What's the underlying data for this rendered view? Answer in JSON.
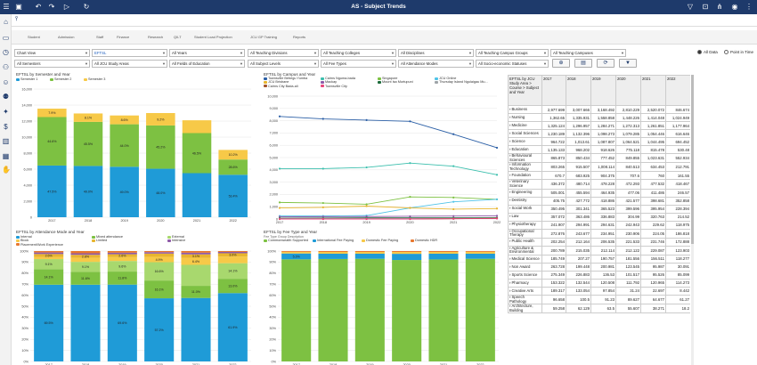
{
  "app": {
    "title": "AS - Subject Trends"
  },
  "topbar": {
    "icons": [
      "hamburger-icon",
      "save-icon",
      "undo-icon",
      "redo-icon",
      "play-icon",
      "refresh-icon",
      "filter-icon",
      "bookmark-icon",
      "share-icon",
      "user-icon",
      "more-icon"
    ]
  },
  "ribbon": {
    "tabs": [
      "Student",
      "Admission",
      "Staff",
      "Finance",
      "Research",
      "QILT",
      "Student Load Projection",
      "JCU GP Training",
      "Reports"
    ]
  },
  "filters": {
    "row1": [
      "Chart View",
      "EFTSL",
      "All Years",
      "All Teaching Divisions",
      "All Teaching Colleges",
      "All Disciplines",
      "All Teaching Campus Groups",
      "All Teaching Campuses"
    ],
    "row2": [
      "All Semesters",
      "All JCU Study Areas",
      "All Fields of Education",
      "All Subject Levels",
      "All Fee Types",
      "All Attendance Modes",
      "All Socio-economic Statuses"
    ]
  },
  "options": {
    "all_data": "All Data",
    "point_in_time": "Point in Time"
  },
  "colors": {
    "blue": "#1f9bd7",
    "green": "#7dc142",
    "yellow": "#f7c948",
    "orange": "#e8772e",
    "teal": "#3bbfad",
    "darkblue": "#2b5fa6",
    "cyan": "#4fc3e8",
    "lightgreen": "#a8d86e",
    "purple": "#8e5aa8",
    "brown": "#a0522d",
    "darkgreen": "#1b6b3a",
    "pink": "#e8467c",
    "gray": "#9ea4a8",
    "gold": "#e8b52e",
    "red": "#d9342b"
  },
  "chart_data": [
    {
      "type": "bar",
      "title": "EFTSL by Semester and Year",
      "categories": [
        "2017",
        "2018",
        "2019",
        "2020",
        "2021",
        "2022"
      ],
      "ylim": [
        0,
        16000
      ],
      "yticks": [
        "0",
        "2,000",
        "4,000",
        "6,000",
        "8,000",
        "10,000",
        "12,000",
        "14,000",
        "16,000"
      ],
      "series": [
        {
          "name": "Semester 1",
          "values": [
            6450,
            6400,
            6300,
            6050,
            5500,
            5300
          ],
          "labels": [
            "47.5%",
            "49.0%",
            "49.0%",
            "48.0%",
            "",
            "53.4%"
          ]
        },
        {
          "name": "Semester 2",
          "values": [
            6050,
            5500,
            5300,
            5400,
            5000,
            1900
          ],
          "labels": [
            "44.6%",
            "45.5%",
            "44.0%",
            "45.2%",
            "46.5%",
            "28.6%"
          ]
        },
        {
          "name": "Semester 3",
          "values": [
            1050,
            1050,
            1100,
            1550,
            1600,
            1200
          ],
          "labels": [
            "7.9%",
            "8.1%",
            "8.6%",
            "9.2%",
            "",
            "10.2%"
          ]
        }
      ]
    },
    {
      "type": "line",
      "title": "EFTSL by Campus and Year",
      "categories": [
        "2017",
        "2018",
        "2019",
        "2020",
        "2021",
        "2022"
      ],
      "ylim": [
        0,
        10000
      ],
      "yticks": [
        "0",
        "1,000",
        "2,000",
        "3,000",
        "4,000",
        "5,000",
        "6,000",
        "7,000",
        "8,000",
        "9,000",
        "10,000"
      ],
      "series": [
        {
          "name": "Townsville Bebegu Yumba",
          "values": [
            8350,
            8150,
            8050,
            7950,
            6900,
            5800
          ]
        },
        {
          "name": "Cairns Nguma-bada",
          "values": [
            4100,
            4100,
            4200,
            4550,
            4300,
            3600
          ]
        },
        {
          "name": "Singapore",
          "values": [
            1350,
            1300,
            1200,
            1800,
            1750,
            1600
          ]
        },
        {
          "name": "JCU Online",
          "values": [
            250,
            250,
            280,
            900,
            1400,
            1600
          ]
        },
        {
          "name": "JCU Brisbane",
          "values": [
            900,
            950,
            1050,
            900,
            800,
            850
          ]
        },
        {
          "name": "Mackay",
          "values": [
            180,
            190,
            200,
            220,
            240,
            260
          ]
        },
        {
          "name": "Mount Isa Murtupuni",
          "values": [
            70,
            80,
            90,
            90,
            95,
            100
          ]
        },
        {
          "name": "Thursday Island Ngulaigau Mu...",
          "values": [
            30,
            35,
            35,
            40,
            40,
            45
          ]
        },
        {
          "name": "Cairns City Bada-ali",
          "values": [
            0,
            0,
            0,
            0,
            20,
            60
          ]
        },
        {
          "name": "Townsville City",
          "values": [
            0,
            0,
            0,
            0,
            20,
            40
          ]
        }
      ]
    },
    {
      "type": "bar",
      "title": "EFTSL by Attendance Mode and Year",
      "categories": [
        "2017",
        "2018",
        "2019",
        "2020",
        "2021",
        "2022"
      ],
      "ylim": [
        0,
        100
      ],
      "yticks": [
        "0%",
        "10%",
        "20%",
        "30%",
        "40%",
        "50%",
        "60%",
        "70%",
        "80%",
        "90%",
        "100%"
      ],
      "series": [
        {
          "name": "Internal",
          "values": [
            69.5,
            69.5,
            69.6,
            57.2,
            57.5,
            61.9
          ],
          "labels": [
            "69.5%",
            "",
            "69.6%",
            "57.2%",
            "",
            "61.9%"
          ]
        },
        {
          "name": "Mixed attendance",
          "values": [
            14.1,
            11.6,
            11.8,
            16.1,
            11.0,
            13.0
          ],
          "labels": [
            "14.1%",
            "11.6%",
            "11.8%",
            "16.1%",
            "11.0%",
            "13.0%"
          ]
        },
        {
          "name": "External",
          "values": [
            9.1,
            9.1,
            9.6,
            16.6,
            19.0,
            14.1
          ],
          "labels": [
            "9.1%",
            "9.1%",
            "9.6%",
            "16.6%",
            "",
            "14.1%"
          ]
        },
        {
          "name": "Block",
          "values": [
            2.0,
            3.6,
            3.5,
            4.9,
            6.4,
            6.0
          ],
          "labels": [
            "",
            "",
            "",
            "4.9%",
            "6.4%",
            ""
          ]
        },
        {
          "name": "Limited",
          "values": [
            2.6,
            2.8,
            2.6,
            2.9,
            3.1,
            3.0
          ],
          "labels": [
            "2.6%",
            "2.8%",
            "2.6%",
            "",
            "3.1%",
            "3.0%"
          ]
        },
        {
          "name": "Intensive",
          "values": [
            1.4,
            1.4,
            1.4,
            1.3,
            1.5,
            1.2
          ],
          "labels": [
            "",
            "",
            "",
            "",
            "",
            ""
          ]
        },
        {
          "name": "Placement/Work Experience",
          "values": [
            1.3,
            2.0,
            1.5,
            1.0,
            1.5,
            0.8
          ],
          "labels": [
            "",
            "",
            "",
            "",
            "",
            ""
          ]
        }
      ]
    },
    {
      "type": "bar",
      "title": "EFTSL by Fee Type and Year",
      "subtitle": "Fee Type Group Description",
      "categories": [
        "2017",
        "2018",
        "2019",
        "2020",
        "2021",
        "2022"
      ],
      "ylim": [
        0,
        100
      ],
      "yticks": [
        "0%",
        "10%",
        "20%",
        "30%",
        "40%",
        "50%",
        "60%",
        "70%",
        "80%",
        "90%",
        "100%"
      ],
      "series": [
        {
          "name": "Commonwealth Supported",
          "values": [
            92.5,
            92.8,
            93.0,
            91.9,
            92.4,
            93.0
          ]
        },
        {
          "name": "International Fee Paying",
          "values": [
            5.3,
            4.8,
            4.6,
            5.6,
            5.2,
            4.6
          ],
          "labels": [
            "5.3%",
            "",
            "",
            "",
            "",
            ""
          ]
        },
        {
          "name": "Domestic Fee Paying",
          "values": [
            1.5,
            1.6,
            1.6,
            1.7,
            1.6,
            1.7
          ],
          "labels": [
            "",
            "",
            "",
            "",
            "",
            ""
          ]
        },
        {
          "name": "Domestic HDR",
          "values": [
            0.7,
            0.8,
            0.8,
            0.8,
            0.8,
            0.7
          ],
          "labels": [
            "",
            "",
            "",
            "",
            "",
            ""
          ]
        }
      ]
    },
    {
      "type": "table",
      "title": "EFTSL by JCU Study Area > Course > Subject and Year",
      "columns": [
        "EFTSL by JCU Study Area > Course > Subject and Year",
        "2017",
        "2018",
        "2019",
        "2020",
        "2021",
        "2022"
      ],
      "rows": [
        [
          "Business",
          "2,977.699",
          "3,007.666",
          "3,168.492",
          "2,810.229",
          "2,520.072",
          "846.674"
        ],
        [
          "Nursing",
          "1,362.65",
          "1,335.931",
          "1,558.858",
          "1,448.226",
          "1,414.048",
          "1,024.949"
        ],
        [
          "Medicine",
          "1,325.124",
          "1,296.957",
          "1,284.271",
          "1,272.313",
          "1,261.851",
          "1,177.964"
        ],
        [
          "Social Sciences",
          "1,230.189",
          "1,132.396",
          "1,098.273",
          "1,079.285",
          "1,054.446",
          "616.646"
        ],
        [
          "Science",
          "964.722",
          "1,013.61",
          "1,087.807",
          "1,064.521",
          "1,044.495",
          "694.452"
        ],
        [
          "Education",
          "1,135.133",
          "968.202",
          "918.626",
          "775.118",
          "815.478",
          "530.48"
        ],
        [
          "Behavioural Sciences",
          "865.873",
          "850.434",
          "777.452",
          "849.855",
          "1,023.631",
          "552.934"
        ],
        [
          "Information Technology",
          "803.265",
          "915.507",
          "1,008.114",
          "840.513",
          "634.453",
          "212.791"
        ],
        [
          "Foundation",
          "670.7",
          "683.925",
          "904.375",
          "707.6",
          "760",
          "161.55"
        ],
        [
          "Veterinary Science",
          "436.372",
          "480.714",
          "478.228",
          "472.293",
          "477.532",
          "418.467"
        ],
        [
          "Engineering",
          "505.001",
          "455.594",
          "464.935",
          "477.06",
          "411.486",
          "246.57"
        ],
        [
          "Dentistry",
          "405.75",
          "427.772",
          "418.886",
          "421.577",
          "398.681",
          "352.858"
        ],
        [
          "Social Work",
          "350.495",
          "301.341",
          "365.523",
          "399.596",
          "395.954",
          "228.394"
        ],
        [
          "Law",
          "357.072",
          "363.486",
          "336.883",
          "304.99",
          "320.763",
          "214.52"
        ],
        [
          "Physiotherapy",
          "241.907",
          "294.991",
          "294.631",
          "242.943",
          "229.62",
          "118.975"
        ],
        [
          "Occupational Therapy",
          "272.876",
          "243.677",
          "234.951",
          "230.906",
          "224.05",
          "186.818"
        ],
        [
          "Public Health",
          "202.254",
          "212.164",
          "206.535",
          "221.533",
          "231.746",
          "172.888"
        ],
        [
          "Agriculture & Environmental",
          "200.789",
          "215.035",
          "212.114",
          "212.122",
          "229.087",
          "123.903"
        ],
        [
          "Medical Science",
          "185.749",
          "207.27",
          "190.757",
          "181.556",
          "156.511",
          "118.277"
        ],
        [
          "Non Award",
          "263.728",
          "199.448",
          "200.981",
          "123.545",
          "95.987",
          "30.091"
        ],
        [
          "Sports Science",
          "275.349",
          "226.883",
          "136.53",
          "101.517",
          "95.526",
          "85.099"
        ],
        [
          "Pharmacy",
          "153.322",
          "132.544",
          "120.508",
          "111.792",
          "120.965",
          "114.273"
        ],
        [
          "Creative Arts",
          "189.317",
          "133.054",
          "97.854",
          "31.24",
          "22.697",
          "8.442"
        ],
        [
          "Speech Pathology",
          "96.658",
          "100.5",
          "91.23",
          "89.627",
          "64.677",
          "61.27"
        ],
        [
          "Architecture, Building",
          "59.258",
          "62.129",
          "63.5",
          "55.607",
          "38.271",
          "18.2"
        ]
      ]
    }
  ]
}
